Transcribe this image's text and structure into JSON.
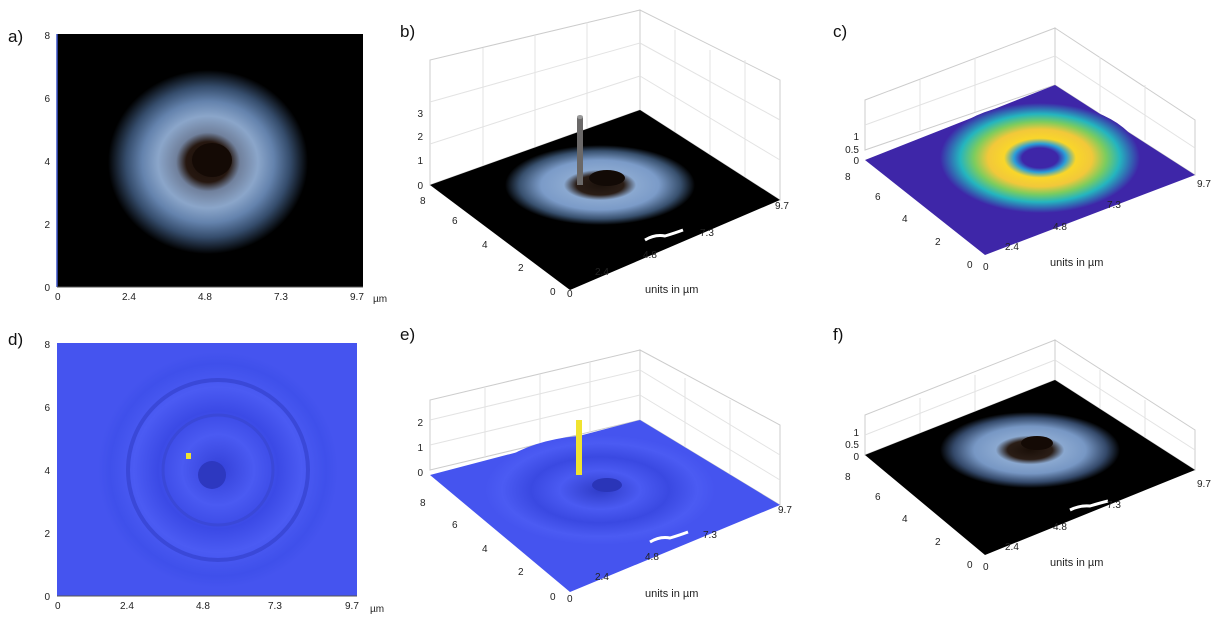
{
  "panels": [
    {
      "id": "a",
      "label": "a)"
    },
    {
      "id": "b",
      "label": "b)"
    },
    {
      "id": "c",
      "label": "c)"
    },
    {
      "id": "d",
      "label": "d)"
    },
    {
      "id": "e",
      "label": "e)"
    },
    {
      "id": "f",
      "label": "f)"
    }
  ],
  "axes": {
    "x_ticks": [
      "0",
      "2.4",
      "4.8",
      "7.3",
      "9.7"
    ],
    "y_ticks": [
      "0",
      "2",
      "4",
      "6",
      "8"
    ],
    "unit_label": "µm",
    "x_axis_label": "units in µm",
    "z_ticks_b": [
      "0",
      "1",
      "2",
      "3"
    ],
    "z_ticks_c": [
      "0",
      "0.5",
      "1"
    ],
    "z_ticks_e": [
      "0",
      "1",
      "2"
    ],
    "z_ticks_f": [
      "0",
      "0.5",
      "1"
    ]
  },
  "colors": {
    "background_dark": "#000000",
    "ring_blue": "#8fb0d8",
    "flat_blue": "#3f4ff0",
    "parula_low": "#3e26a8",
    "parula_mid": "#35b79c",
    "parula_high": "#f9d62a",
    "spike_yellow": "#f0e330",
    "grid": "#e3e3e3"
  }
}
